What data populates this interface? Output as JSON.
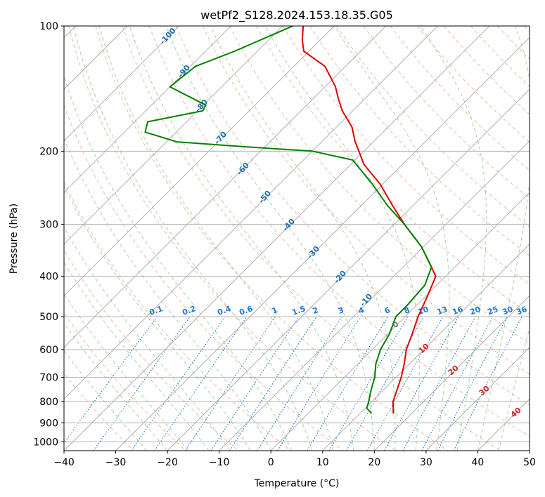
{
  "chart_data": {
    "type": "line",
    "title": "wetPf2_S128.2024.153.18.35.G05",
    "xlabel": "Temperature (°C)",
    "ylabel": "Pressure (hPa)",
    "xlim": [
      -40,
      50
    ],
    "ylim": [
      1050,
      100
    ],
    "y_scale": "log",
    "skew": true,
    "grid": true,
    "x_ticks": [
      "−40",
      "−30",
      "−20",
      "−10",
      "0",
      "10",
      "20",
      "30",
      "40",
      "50"
    ],
    "y_ticks": [
      "100",
      "200",
      "300",
      "400",
      "500",
      "600",
      "700",
      "800",
      "900",
      "1000"
    ],
    "series": [
      {
        "color": "#e00000",
        "pressure": [
          100,
          108,
          115,
          125,
          140,
          150,
          160,
          175,
          190,
          200,
          215,
          240,
          270,
          300,
          340,
          380,
          400,
          450,
          500,
          550,
          600,
          650,
          700,
          750,
          800,
          855
        ],
        "temperature": [
          -76,
          -73.5,
          -71,
          -64,
          -58,
          -55,
          -52,
          -47,
          -43.5,
          -41,
          -37.5,
          -30.5,
          -24,
          -18,
          -10.3,
          -4.5,
          -1.9,
          0.5,
          2.5,
          4.7,
          6.6,
          9,
          11,
          12.6,
          14.1,
          16.5
        ]
      },
      {
        "color": "#008000",
        "pressure": [
          100,
          115,
          125,
          140,
          155,
          160,
          170,
          180,
          190,
          195,
          200,
          210,
          240,
          270,
          300,
          340,
          380,
          420,
          470,
          500,
          550,
          600,
          650,
          700,
          750,
          800,
          830,
          855
        ],
        "temperature": [
          -78,
          -84.4,
          -89,
          -90,
          -79.5,
          -79,
          -87.5,
          -86,
          -78,
          -64.5,
          -50,
          -40.5,
          -32,
          -25,
          -18,
          -10.3,
          -4.5,
          -2.3,
          -1.8,
          -1.8,
          0.3,
          1.6,
          3.5,
          5.9,
          7.6,
          9.4,
          10.3,
          12.3
        ]
      }
    ],
    "dry_adiabat_labels": [
      "-100",
      "-90",
      "-80",
      "-70",
      "-60",
      "-50",
      "-40",
      "-30",
      "-20",
      "-10"
    ],
    "mixing_ratio_labels": [
      "0.1",
      "0.2",
      "0.4",
      "0.6",
      "1",
      "1.5",
      "2",
      "3",
      "4",
      "6",
      "8",
      "10",
      "13",
      "16",
      "20",
      "25",
      "30",
      "36"
    ],
    "moist_adiabat_labels": [
      "0",
      "10",
      "20",
      "30",
      "40"
    ],
    "colors": {
      "isotherm": "#b0b0b0",
      "dry_adiabat": "#f4a582",
      "moist_adiabat": "#8fc98f",
      "mixing_ratio": "#1f77d4",
      "dry_label": "#1f6fb2",
      "moist_label": "#d62728",
      "zero_label": "#7f7f7f"
    }
  }
}
